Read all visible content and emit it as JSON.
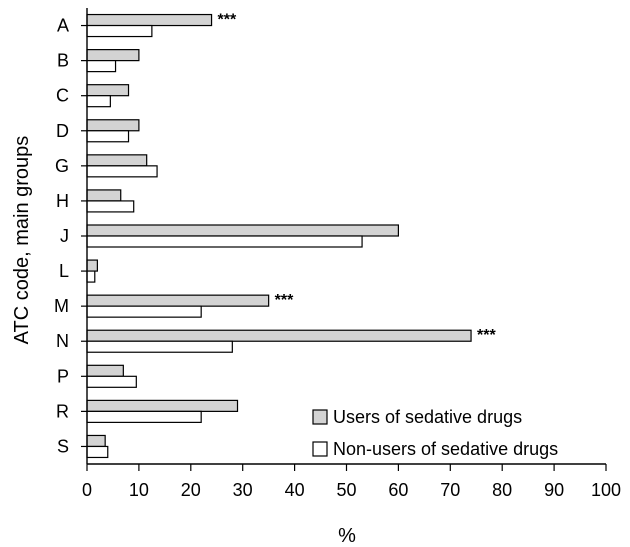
{
  "chart_data": {
    "type": "bar",
    "orientation": "horizontal",
    "categories": [
      "A",
      "B",
      "C",
      "D",
      "G",
      "H",
      "J",
      "L",
      "M",
      "N",
      "P",
      "R",
      "S"
    ],
    "series": [
      {
        "name": "Users of sedative drugs",
        "color": "#d3d3d3",
        "values": [
          24,
          10,
          8,
          10,
          11.5,
          6.5,
          60,
          2,
          35,
          74,
          7,
          29,
          3.5
        ]
      },
      {
        "name": "Non-users of sedative drugs",
        "color": "#ffffff",
        "values": [
          12.5,
          5.5,
          4.5,
          8,
          13.5,
          9,
          53,
          1.5,
          22,
          28,
          9.5,
          22,
          4
        ]
      }
    ],
    "annotations": [
      {
        "category": "A",
        "text": "***"
      },
      {
        "category": "M",
        "text": "***"
      },
      {
        "category": "N",
        "text": "***"
      }
    ],
    "xlabel": "%",
    "ylabel": "ATC code, main groups",
    "xlim": [
      0,
      100
    ],
    "xticks": [
      "0",
      "10",
      "20",
      "30",
      "40",
      "50",
      "60",
      "70",
      "80",
      "90",
      "100"
    ],
    "legend": "bottom-right",
    "grid": false
  }
}
